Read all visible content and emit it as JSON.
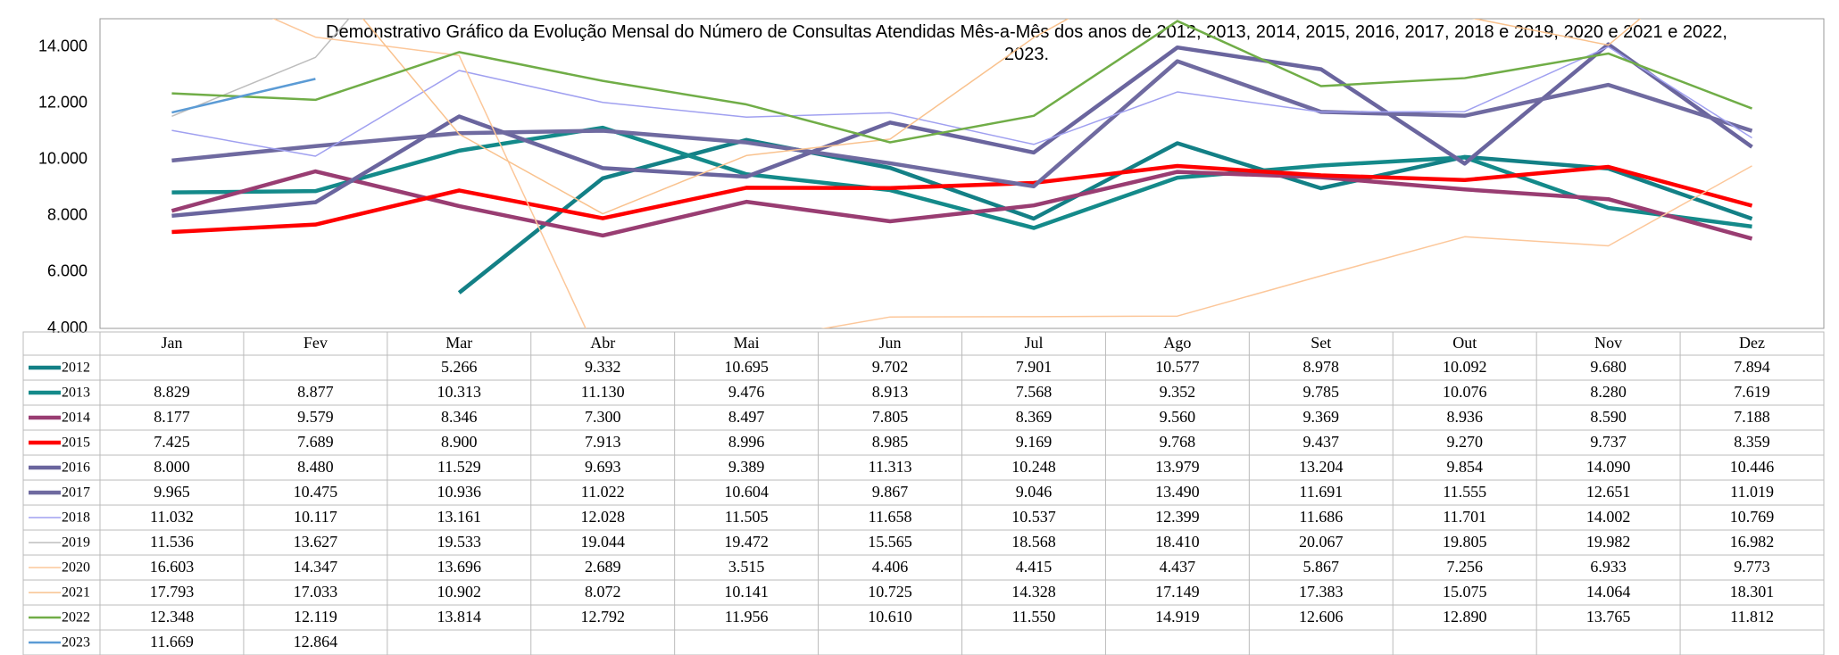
{
  "chart_data": {
    "type": "line",
    "title": "Demonstrativo Gráfico da Evolução Mensal do Número de Consultas Atendidas Mês-a-Mês dos anos de  2012, 2013, 2014, 2015, 2016, 2017, 2018 e 2019, 2020 e 2021 e 2022, 2023.",
    "categories": [
      "Jan",
      "Fev",
      "Mar",
      "Abr",
      "Mai",
      "Jun",
      "Jul",
      "Ago",
      "Set",
      "Out",
      "Nov",
      "Dez"
    ],
    "ylim": [
      4000,
      15000
    ],
    "yticks": [
      {
        "value": 4000,
        "label": "4.000"
      },
      {
        "value": 6000,
        "label": "6.000"
      },
      {
        "value": 8000,
        "label": "8.000"
      },
      {
        "value": 10000,
        "label": "10.000"
      },
      {
        "value": 12000,
        "label": "12.000"
      },
      {
        "value": 14000,
        "label": "14.000"
      }
    ],
    "grid": false,
    "series": [
      {
        "name": "2012",
        "color": "#138086",
        "values": [
          null,
          null,
          5266,
          9332,
          10695,
          9702,
          7901,
          10577,
          8978,
          10092,
          9680,
          7894
        ],
        "value_labels": [
          null,
          null,
          "5.266",
          "9.332",
          "10.695",
          "9.702",
          "7.901",
          "10.577",
          "8.978",
          "10.092",
          "9.680",
          "7.894"
        ]
      },
      {
        "name": "2013",
        "color": "#148a8a",
        "values": [
          8829,
          8877,
          10313,
          11130,
          9476,
          8913,
          7568,
          9352,
          9785,
          10076,
          8280,
          7619
        ],
        "value_labels": [
          "8.829",
          "8.877",
          "10.313",
          "11.130",
          "9.476",
          "8.913",
          "7.568",
          "9.352",
          "9.785",
          "10.076",
          "8.280",
          "7.619"
        ]
      },
      {
        "name": "2014",
        "color": "#993d72",
        "values": [
          8177,
          9579,
          8346,
          7300,
          8497,
          7805,
          8369,
          9560,
          9369,
          8936,
          8590,
          7188
        ],
        "value_labels": [
          "8.177",
          "9.579",
          "8.346",
          "7.300",
          "8.497",
          "7.805",
          "8.369",
          "9.560",
          "9.369",
          "8.936",
          "8.590",
          "7.188"
        ]
      },
      {
        "name": "2015",
        "color": "#ff0000",
        "values": [
          7425,
          7689,
          8900,
          7913,
          8996,
          8985,
          9169,
          9768,
          9437,
          9270,
          9737,
          8359
        ],
        "value_labels": [
          "7.425",
          "7.689",
          "8.900",
          "7.913",
          "8.996",
          "8.985",
          "9.169",
          "9.768",
          "9.437",
          "9.270",
          "9.737",
          "8.359"
        ]
      },
      {
        "name": "2016",
        "color": "#6a659e",
        "values": [
          8000,
          8480,
          11529,
          9693,
          9389,
          11313,
          10248,
          13979,
          13204,
          9854,
          14090,
          10446
        ],
        "value_labels": [
          "8.000",
          "8.480",
          "11.529",
          "9.693",
          "9.389",
          "11.313",
          "10.248",
          "13.979",
          "13.204",
          "9.854",
          "14.090",
          "10.446"
        ]
      },
      {
        "name": "2017",
        "color": "#6f6aa0",
        "values": [
          9965,
          10475,
          10936,
          11022,
          10604,
          9867,
          9046,
          13490,
          11691,
          11555,
          12651,
          11019
        ],
        "value_labels": [
          "9.965",
          "10.475",
          "10.936",
          "11.022",
          "10.604",
          "9.867",
          "9.046",
          "13.490",
          "11.691",
          "11.555",
          "12.651",
          "11.019"
        ]
      },
      {
        "name": "2018",
        "color": "#a0a0f0",
        "values": [
          11032,
          10117,
          13161,
          12028,
          11505,
          11658,
          10537,
          12399,
          11686,
          11701,
          14002,
          10769
        ],
        "value_labels": [
          "11.032",
          "10.117",
          "13.161",
          "12.028",
          "11.505",
          "11.658",
          "10.537",
          "12.399",
          "11.686",
          "11.701",
          "14.002",
          "10.769"
        ]
      },
      {
        "name": "2019",
        "color": "#bdbdbd",
        "values": [
          11536,
          13627,
          19533,
          19044,
          19472,
          15565,
          18568,
          18410,
          20067,
          19805,
          19982,
          16982
        ],
        "value_labels": [
          "11.536",
          "13.627",
          "19.533",
          "19.044",
          "19.472",
          "15.565",
          "18.568",
          "18.410",
          "20.067",
          "19.805",
          "19.982",
          "16.982"
        ]
      },
      {
        "name": "2020",
        "color": "#fcc79a",
        "values": [
          16603,
          14347,
          13696,
          2689,
          3515,
          4406,
          4415,
          4437,
          5867,
          7256,
          6933,
          9773
        ],
        "value_labels": [
          "16.603",
          "14.347",
          "13.696",
          "2.689",
          "3.515",
          "4.406",
          "4.415",
          "4.437",
          "5.867",
          "7.256",
          "6.933",
          "9.773"
        ]
      },
      {
        "name": "2021",
        "color": "#f9c28e",
        "values": [
          17793,
          17033,
          10902,
          8072,
          10141,
          10725,
          14328,
          17149,
          17383,
          15075,
          14064,
          18301
        ],
        "value_labels": [
          "17.793",
          "17.033",
          "10.902",
          "8.072",
          "10.141",
          "10.725",
          "14.328",
          "17.149",
          "17.383",
          "15.075",
          "14.064",
          "18.301"
        ]
      },
      {
        "name": "2022",
        "color": "#70ad47",
        "values": [
          12348,
          12119,
          13814,
          12792,
          11956,
          10610,
          11550,
          14919,
          12606,
          12890,
          13765,
          11812
        ],
        "value_labels": [
          "12.348",
          "12.119",
          "13.814",
          "12.792",
          "11.956",
          "10.610",
          "11.550",
          "14.919",
          "12.606",
          "12.890",
          "13.765",
          "11.812"
        ]
      },
      {
        "name": "2023",
        "color": "#5b9bd5",
        "values": [
          11669,
          12864,
          null,
          null,
          null,
          null,
          null,
          null,
          null,
          null,
          null,
          null
        ],
        "value_labels": [
          "11.669",
          "12.864",
          null,
          null,
          null,
          null,
          null,
          null,
          null,
          null,
          null,
          null
        ]
      }
    ]
  }
}
